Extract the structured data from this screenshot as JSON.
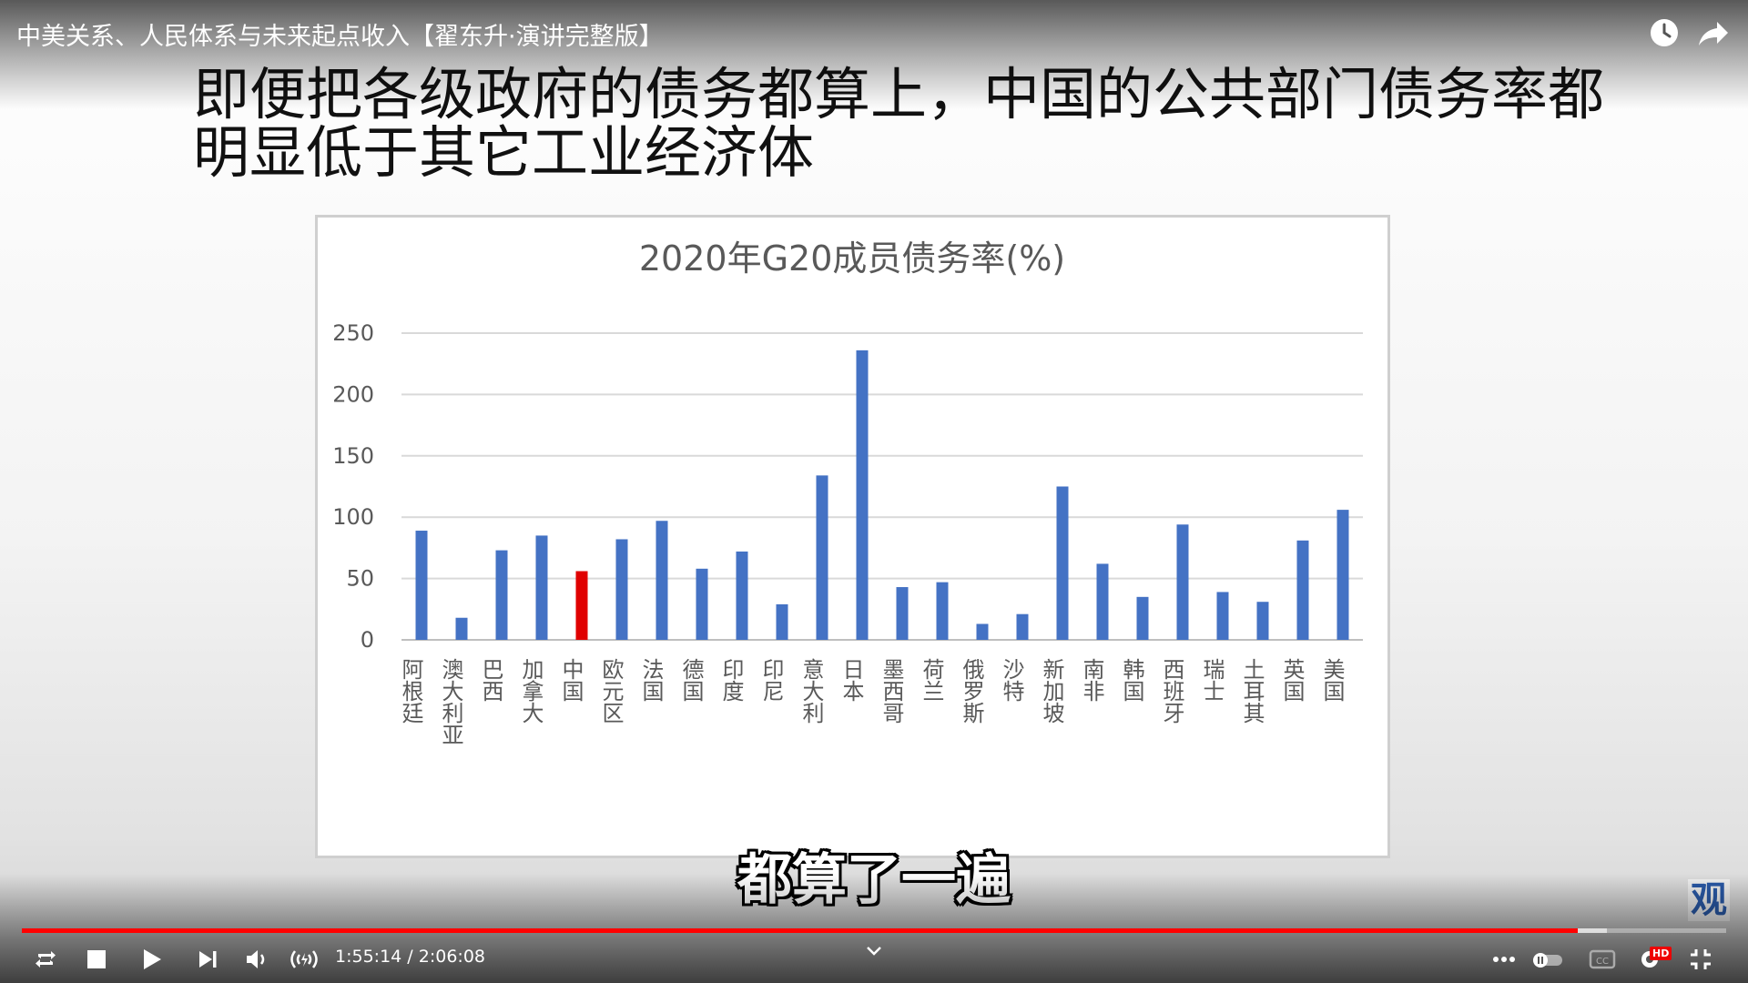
{
  "video": {
    "title": "中美关系、人民体系与未来起点收入【翟东升·演讲完整版】",
    "current_time": "1:55:14",
    "duration": "2:06:08",
    "progress": 0.913,
    "buffered": 0.93
  },
  "slide": {
    "heading_line1": "即便把各级政府的债务都算上，中国的公共部门债务率都",
    "heading_line2": "明显低于其它工业经济体"
  },
  "subtitle": "都算了一遍",
  "watermark": "观",
  "hd_label": "HD",
  "colors": {
    "bar": "#4472c4",
    "highlight_bar": "#e00000",
    "progress": "#ff0000"
  },
  "icons": [
    "watch-later-icon",
    "share-icon",
    "loop-icon",
    "stop-icon",
    "play-icon",
    "next-icon",
    "volume-icon",
    "live-icon",
    "chevron-down-icon",
    "more-icon",
    "autoplay-toggle-icon",
    "captions-icon",
    "settings-icon",
    "exit-fullscreen-icon"
  ],
  "chart_data": {
    "type": "bar",
    "title": "2020年G20成员债务率(%)",
    "categories": [
      "阿根廷",
      "澳大利亚",
      "巴西",
      "加拿大",
      "中国",
      "欧元区",
      "法国",
      "德国",
      "印度",
      "印尼",
      "意大利",
      "日本",
      "墨西哥",
      "荷兰",
      "俄罗斯",
      "沙特",
      "新加坡",
      "南非",
      "韩国",
      "西班牙",
      "瑞士",
      "土耳其",
      "英国",
      "美国"
    ],
    "values": [
      89,
      18,
      73,
      85,
      56,
      82,
      97,
      58,
      72,
      29,
      134,
      236,
      43,
      47,
      13,
      21,
      125,
      62,
      35,
      94,
      39,
      31,
      81,
      106
    ],
    "highlight": "中国",
    "ylim": [
      0,
      250
    ],
    "yticks": [
      0,
      50,
      100,
      150,
      200,
      250
    ],
    "grid": true
  }
}
